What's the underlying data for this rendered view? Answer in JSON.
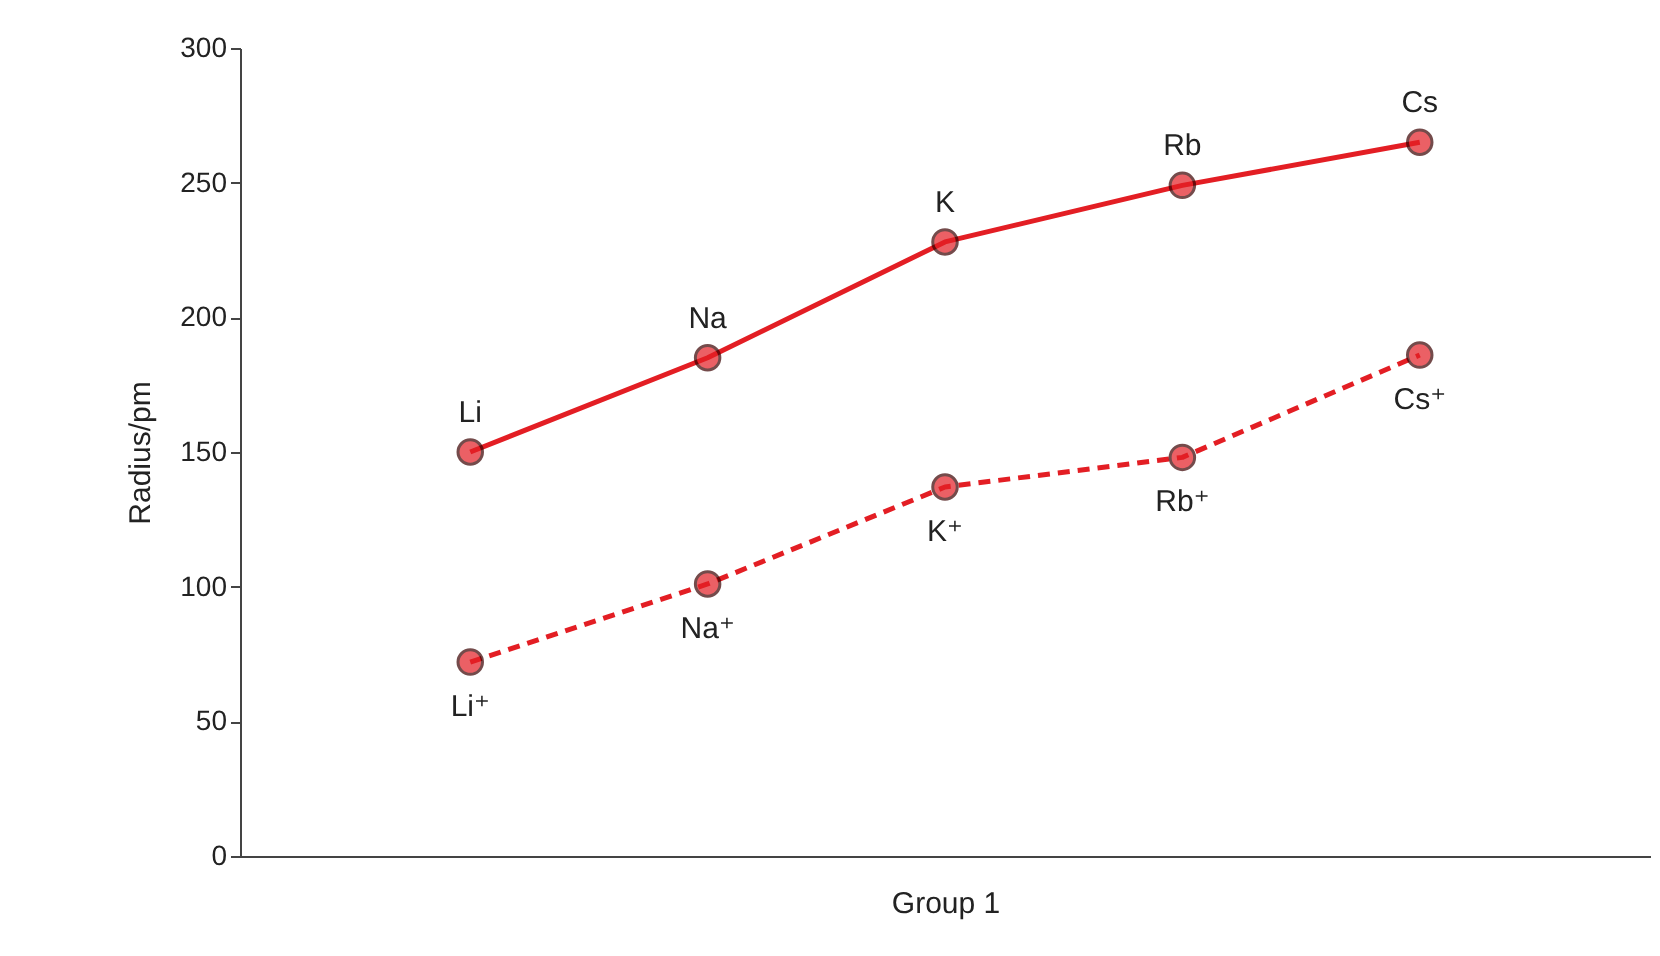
{
  "chart_data": {
    "type": "line",
    "xlabel": "Group 1",
    "ylabel": "Radius/pm",
    "categories": [
      null,
      null,
      null,
      null,
      null
    ],
    "ylim": [
      0,
      300
    ],
    "yticks": [
      0,
      50,
      100,
      150,
      200,
      250,
      300
    ],
    "grid": false,
    "legend": false,
    "marker": "circle",
    "series": [
      {
        "color": "#e31e24",
        "line_style": "solid",
        "values": [
          150,
          185,
          228,
          249,
          265
        ],
        "value_labels": [
          "Li",
          "Na",
          "K",
          "Rb",
          "Cs"
        ]
      },
      {
        "color": "#e31e24",
        "line_style": "dashed",
        "values": [
          72,
          101,
          137,
          148,
          186
        ],
        "value_labels": [
          "Li⁺",
          "Na⁺",
          "K⁺",
          "Rb⁺",
          "Cs⁺"
        ]
      }
    ]
  }
}
